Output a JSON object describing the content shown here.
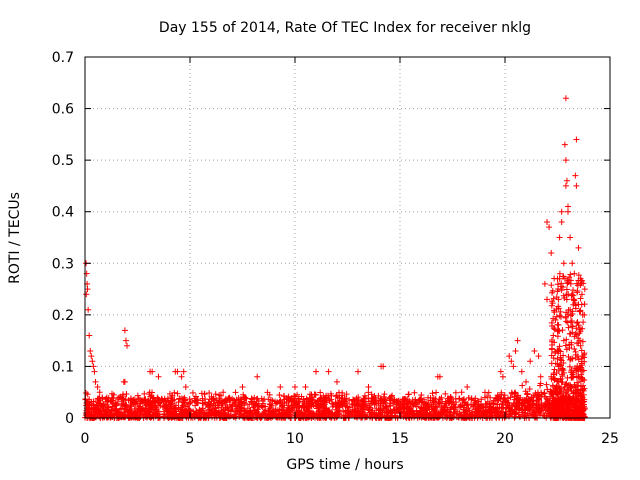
{
  "chart_data": {
    "type": "scatter",
    "title": "Day 155 of 2014, Rate Of TEC Index for receiver nklg",
    "xlabel": "GPS time / hours",
    "ylabel": "ROTI / TECUs",
    "xlim": [
      0,
      25
    ],
    "ylim": [
      0,
      0.7
    ],
    "xticks": [
      0,
      5,
      10,
      15,
      20,
      25
    ],
    "yticks": [
      0,
      0.1,
      0.2,
      0.3,
      0.4,
      0.5,
      0.6,
      0.7
    ],
    "grid": true,
    "marker": "+",
    "color": "#ff0000",
    "series": [
      {
        "values": [
          [
            0.05,
            0.3
          ],
          [
            0.08,
            0.28
          ],
          [
            0.1,
            0.26
          ],
          [
            0.12,
            0.25
          ],
          [
            0.06,
            0.24
          ],
          [
            0.15,
            0.21
          ],
          [
            0.2,
            0.16
          ],
          [
            0.3,
            0.12
          ],
          [
            0.35,
            0.11
          ],
          [
            0.4,
            0.1
          ],
          [
            0.45,
            0.09
          ],
          [
            0.25,
            0.13
          ],
          [
            0.5,
            0.07
          ],
          [
            0.6,
            0.06
          ],
          [
            0.7,
            0.05
          ],
          [
            1.9,
            0.17
          ],
          [
            1.95,
            0.15
          ],
          [
            2.0,
            0.14
          ],
          [
            1.85,
            0.07
          ],
          [
            1.9,
            0.07
          ],
          [
            3.1,
            0.09
          ],
          [
            3.2,
            0.09
          ],
          [
            3.5,
            0.08
          ],
          [
            4.3,
            0.09
          ],
          [
            4.4,
            0.09
          ],
          [
            4.6,
            0.08
          ],
          [
            4.7,
            0.09
          ],
          [
            4.8,
            0.06
          ],
          [
            7.5,
            0.06
          ],
          [
            8.2,
            0.08
          ],
          [
            9.3,
            0.06
          ],
          [
            10.0,
            0.06
          ],
          [
            10.5,
            0.06
          ],
          [
            11.0,
            0.09
          ],
          [
            11.6,
            0.09
          ],
          [
            12.0,
            0.07
          ],
          [
            13.0,
            0.09
          ],
          [
            13.5,
            0.06
          ],
          [
            14.1,
            0.1
          ],
          [
            14.2,
            0.1
          ],
          [
            16.8,
            0.08
          ],
          [
            16.9,
            0.08
          ],
          [
            18.2,
            0.06
          ],
          [
            19.8,
            0.09
          ],
          [
            19.9,
            0.08
          ],
          [
            20.2,
            0.12
          ],
          [
            20.3,
            0.11
          ],
          [
            20.4,
            0.1
          ],
          [
            20.5,
            0.13
          ],
          [
            20.6,
            0.15
          ],
          [
            20.8,
            0.09
          ],
          [
            21.0,
            0.07
          ],
          [
            21.2,
            0.11
          ],
          [
            21.4,
            0.13
          ],
          [
            21.6,
            0.12
          ],
          [
            21.7,
            0.08
          ],
          [
            21.9,
            0.26
          ],
          [
            22.0,
            0.23
          ],
          [
            22.0,
            0.38
          ],
          [
            22.1,
            0.37
          ],
          [
            22.2,
            0.32
          ],
          [
            22.3,
            0.16
          ],
          [
            22.4,
            0.19
          ],
          [
            22.5,
            0.27
          ],
          [
            22.6,
            0.35
          ],
          [
            22.6,
            0.27
          ],
          [
            22.7,
            0.4
          ],
          [
            22.7,
            0.38
          ],
          [
            22.8,
            0.3
          ],
          [
            22.9,
            0.62
          ],
          [
            22.85,
            0.53
          ],
          [
            22.9,
            0.5
          ],
          [
            22.95,
            0.46
          ],
          [
            22.9,
            0.45
          ],
          [
            23.0,
            0.41
          ],
          [
            23.0,
            0.4
          ],
          [
            23.1,
            0.35
          ],
          [
            23.2,
            0.3
          ],
          [
            23.3,
            0.28
          ],
          [
            23.4,
            0.54
          ],
          [
            23.35,
            0.47
          ],
          [
            23.4,
            0.45
          ],
          [
            23.5,
            0.33
          ],
          [
            23.5,
            0.22
          ],
          [
            23.6,
            0.27
          ],
          [
            23.7,
            0.2
          ],
          [
            23.8,
            0.25
          ],
          [
            23.5,
            0.18
          ],
          [
            23.6,
            0.14
          ],
          [
            23.7,
            0.12
          ],
          [
            23.2,
            0.24
          ],
          [
            23.1,
            0.21
          ],
          [
            22.8,
            0.15
          ]
        ],
        "baseline_band": {
          "x_range": [
            0,
            23.8
          ],
          "typical_range": [
            0,
            0.04
          ],
          "occasional_max": 0.05
        }
      }
    ]
  }
}
